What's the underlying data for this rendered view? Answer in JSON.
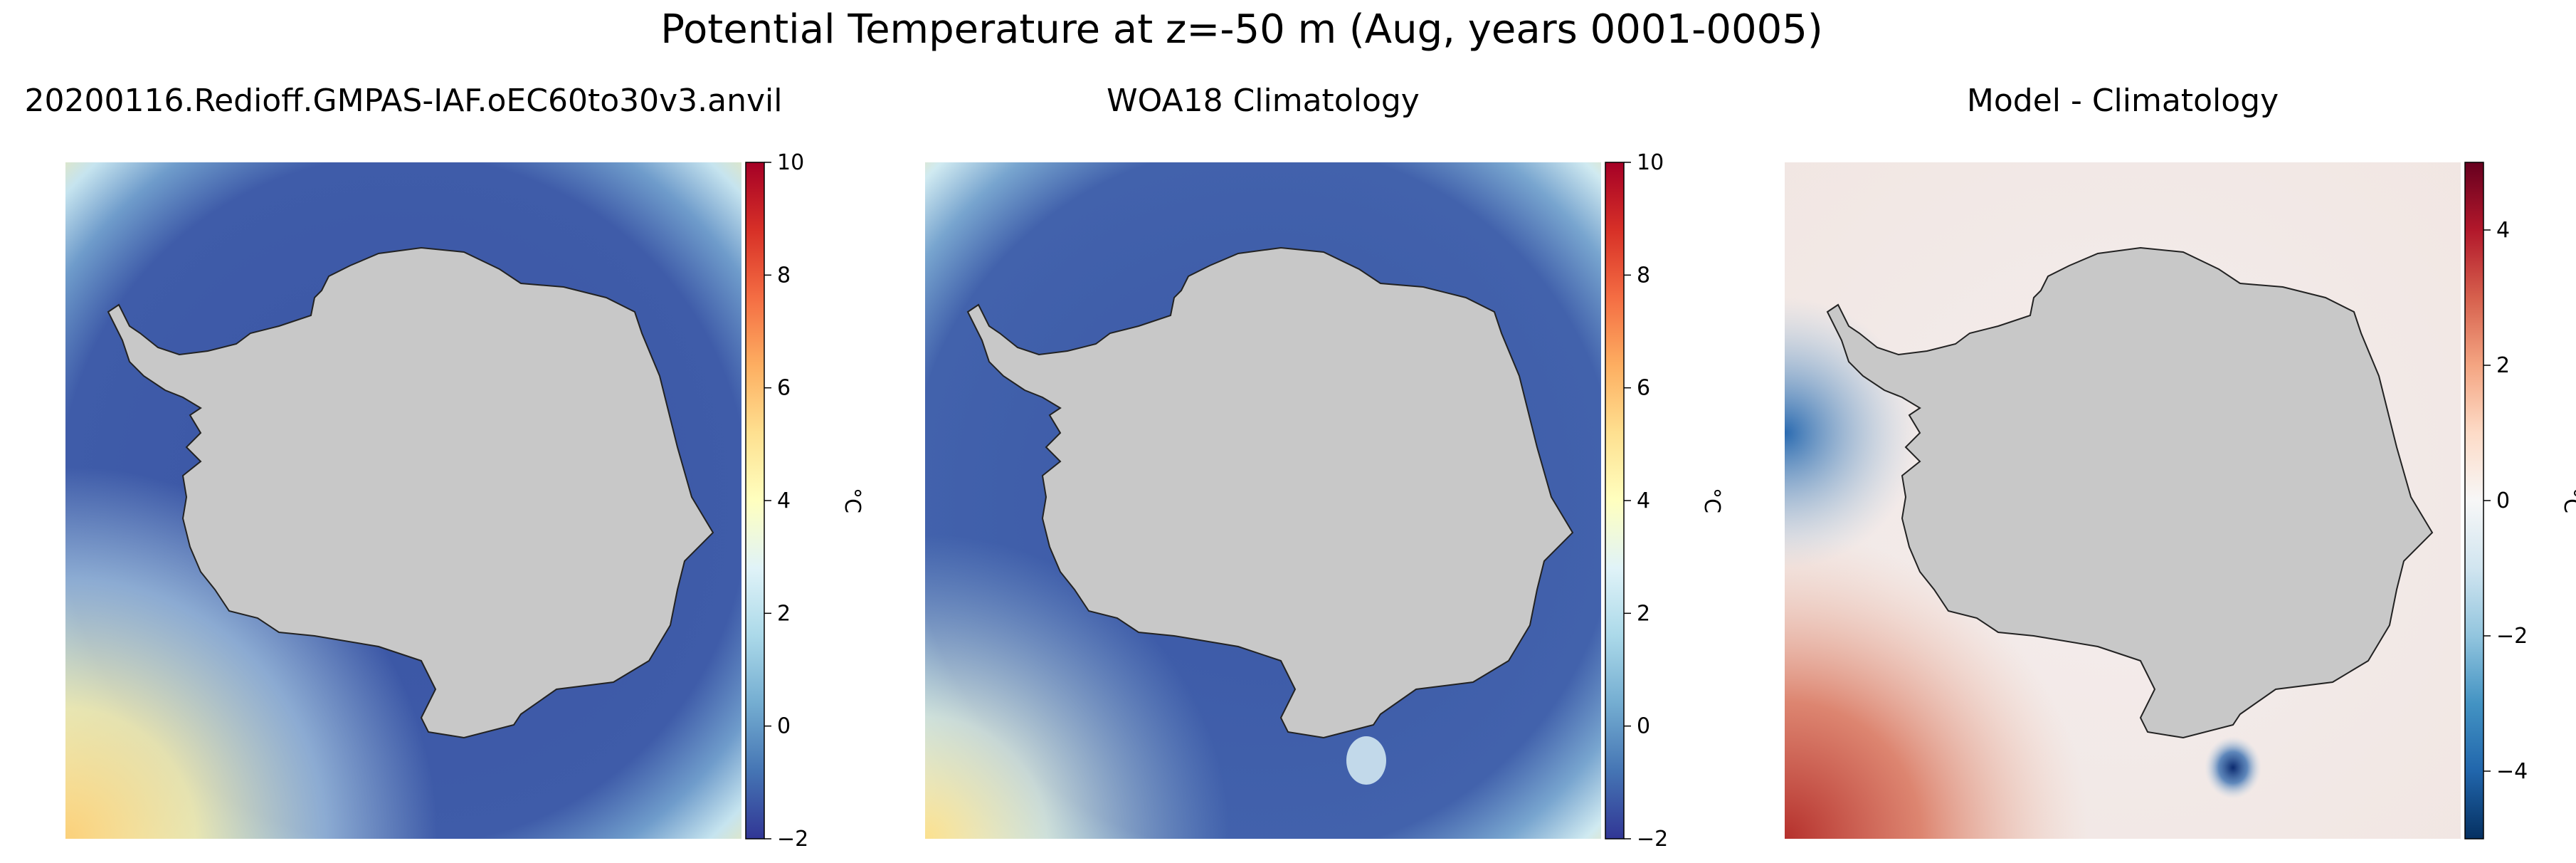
{
  "figure": {
    "title": "Potential Temperature at z=-50 m (Aug, years 0001-0005)"
  },
  "chart_data": [
    {
      "type": "heatmap",
      "title": "20200116.Redioff.GMPAS-IAF.oEC60to30v3.anvil",
      "variable": "potential temperature",
      "depth": "z=-50 m",
      "colormap": "RdYlBu_r",
      "vmin": -2,
      "vmax": 10,
      "colorbar_ticks": [
        -2,
        0,
        2,
        4,
        6,
        8,
        10
      ],
      "colorbar_label": "°C",
      "description_of_values": "Near -2 °C across the Southern Ocean; warmer (~0 to 6 °C) toward the outer corners, warmest (~5–6 °C) in the bottom-left corner"
    },
    {
      "type": "heatmap",
      "title": "WOA18 Climatology",
      "variable": "potential temperature",
      "depth": "z=-50 m",
      "colormap": "RdYlBu_r",
      "vmin": -2,
      "vmax": 10,
      "colorbar_ticks": [
        -2,
        0,
        2,
        4,
        6,
        8,
        10
      ],
      "colorbar_label": "°C",
      "description_of_values": "Near -2 °C around Antarctica with slightly warmer (-1 to 1 °C) patches; warm corners (~2–5 °C) similar to model"
    },
    {
      "type": "heatmap",
      "title": "Model - Climatology",
      "variable": "potential temperature difference",
      "depth": "z=-50 m",
      "colormap": "RdBu_r",
      "vmin": -5,
      "vmax": 5,
      "colorbar_ticks": [
        -4,
        -2,
        0,
        2,
        4
      ],
      "colorbar_label": "°C",
      "description_of_values": "Mostly near 0 °C; positive bias (~+2 to +3 °C) in bottom-left corner, negative bias (~-3 to -4 °C) on left edge and near bottom-center shelf"
    }
  ],
  "colors": {
    "land": "#c8c8c8",
    "coast": "#222222",
    "ocean_cold": "#3a54a4"
  }
}
